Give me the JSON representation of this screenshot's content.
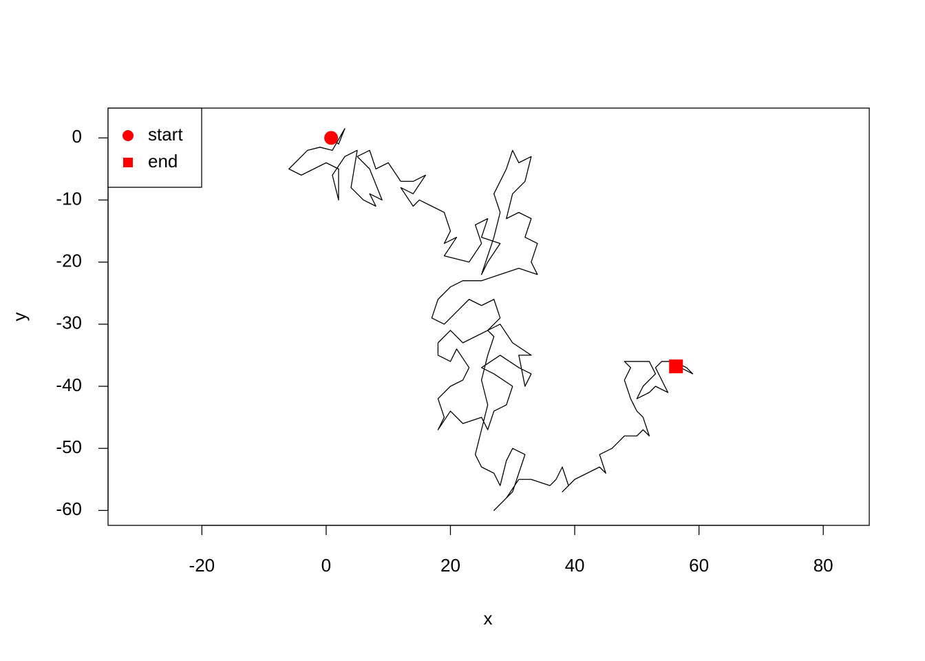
{
  "chart_data": {
    "type": "line",
    "xlabel": "x",
    "ylabel": "y",
    "color": "#000000",
    "x": [
      0.8,
      2,
      3,
      1,
      -1,
      -3,
      -5,
      -6,
      -4,
      -2,
      0,
      2,
      2,
      1,
      3,
      5,
      4,
      6,
      8,
      7,
      9,
      7,
      5,
      7,
      8,
      10,
      12,
      14,
      16,
      14,
      12,
      14,
      15,
      17,
      19,
      20,
      19,
      21,
      19,
      23,
      25,
      24,
      26,
      25,
      28,
      26,
      25,
      27,
      28,
      27,
      29,
      30,
      31,
      33,
      32,
      30,
      29,
      31,
      33,
      32,
      34,
      33,
      34,
      31,
      28,
      25,
      22,
      20,
      18,
      17,
      19,
      21,
      23,
      25,
      27,
      28,
      26,
      24,
      22,
      20,
      18,
      18,
      20,
      21,
      23,
      22,
      20,
      18,
      19,
      18,
      20,
      22,
      25,
      26,
      27,
      29,
      30,
      27,
      25,
      28,
      31,
      33,
      32,
      31,
      33,
      30,
      28,
      26,
      27,
      26,
      25,
      26,
      25,
      24,
      25,
      27,
      28,
      29,
      30,
      32,
      31,
      30,
      28,
      27,
      29,
      31,
      33,
      36,
      37,
      38,
      39,
      38,
      40,
      42,
      44,
      45,
      44,
      46,
      47,
      48,
      50,
      51,
      52,
      51,
      50,
      49,
      48,
      49,
      48,
      50,
      52,
      53,
      51,
      50,
      52,
      53,
      55,
      54,
      53,
      54,
      56,
      58,
      59,
      57,
      56.3
    ],
    "values": [
      0,
      -1,
      1.5,
      -2,
      -1.5,
      -2,
      -4,
      -5,
      -6,
      -5,
      -4,
      -5,
      -10,
      -6,
      -3,
      -2,
      -8,
      -10,
      -11,
      -9,
      -10,
      -5,
      -3,
      -2,
      -5,
      -4,
      -7,
      -7,
      -6,
      -9,
      -8,
      -11,
      -10,
      -11,
      -12,
      -15,
      -17,
      -16,
      -19,
      -20,
      -17,
      -14,
      -13,
      -16,
      -17,
      -20,
      -22,
      -16,
      -12,
      -9,
      -5,
      -2,
      -4,
      -3,
      -7,
      -9,
      -13,
      -12,
      -13,
      -16,
      -17,
      -20,
      -22,
      -21,
      -22,
      -23,
      -23,
      -24,
      -26,
      -29,
      -30,
      -28,
      -26,
      -27,
      -26,
      -29,
      -31,
      -32,
      -33,
      -31,
      -33,
      -35,
      -36,
      -34,
      -37,
      -39,
      -40,
      -42,
      -45,
      -47,
      -44,
      -46,
      -45,
      -47,
      -44,
      -43,
      -40,
      -38,
      -37,
      -35,
      -37,
      -38,
      -40,
      -35,
      -35,
      -33,
      -30,
      -31,
      -32,
      -35,
      -39,
      -43,
      -47,
      -51,
      -53,
      -54,
      -56,
      -52,
      -50,
      -51,
      -54,
      -57,
      -59,
      -60,
      -58,
      -55,
      -55,
      -56,
      -55,
      -53,
      -56,
      -57,
      -55,
      -54,
      -53,
      -54,
      -51,
      -50,
      -49,
      -48,
      -48,
      -47,
      -48,
      -45,
      -44,
      -42,
      -39,
      -37,
      -36,
      -36,
      -36,
      -38,
      -40,
      -42,
      -41,
      -40,
      -41,
      -39,
      -37,
      -36,
      -36,
      -37,
      -38,
      -37,
      -36.8
    ],
    "series": [
      {
        "name": "start",
        "x": [
          0.8
        ],
        "values": [
          0
        ],
        "color": "#ff0000",
        "marker": "circle"
      },
      {
        "name": "end",
        "x": [
          56.3
        ],
        "values": [
          -36.8
        ],
        "color": "#ff0000",
        "marker": "square"
      }
    ],
    "xlim": [
      -35.1,
      87.4
    ],
    "ylim": [
      -62.4,
      4.8
    ],
    "xticks": [
      -20,
      0,
      20,
      40,
      60,
      80
    ],
    "yticks": [
      0,
      -10,
      -20,
      -30,
      -40,
      -50,
      -60
    ],
    "grid": false,
    "legend": "top-left"
  }
}
